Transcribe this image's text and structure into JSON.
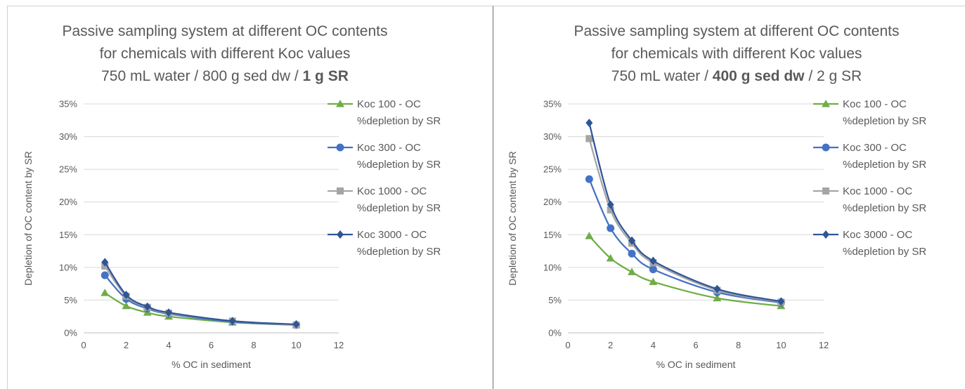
{
  "chart_data": [
    {
      "type": "line",
      "title_line1": "Passive sampling system at different OC contents",
      "title_line2": "for chemicals with different Koc values",
      "title_line3_parts": [
        {
          "text": "750 mL water / 800 g sed dw / ",
          "bold": false
        },
        {
          "text": "1 g SR",
          "bold": true
        }
      ],
      "xlabel": "% OC in sediment",
      "ylabel": "Depletion of OC content by SR",
      "xlim": [
        0,
        12
      ],
      "ylim": [
        0,
        0.35
      ],
      "x_ticks": [
        "0",
        "2",
        "4",
        "6",
        "8",
        "10",
        "12"
      ],
      "y_ticks": [
        "0%",
        "5%",
        "10%",
        "15%",
        "20%",
        "25%",
        "30%",
        "35%"
      ],
      "grid": true,
      "legend_position": "right",
      "x": [
        1,
        2,
        3,
        4,
        7,
        10
      ],
      "series": [
        {
          "name_line1": "Koc 100 - OC",
          "name_line2": "%depletion by SR",
          "color": "#70ad47",
          "marker": "triangle",
          "values": [
            0.061,
            0.041,
            0.031,
            0.025,
            0.016,
            0.012
          ]
        },
        {
          "name_line1": "Koc 300 - OC",
          "name_line2": "%depletion by SR",
          "color": "#4472c4",
          "marker": "circle",
          "values": [
            0.088,
            0.052,
            0.037,
            0.029,
            0.017,
            0.012
          ]
        },
        {
          "name_line1": "Koc 1000 - OC",
          "name_line2": "%depletion by SR",
          "color": "#a5a5a5",
          "marker": "square",
          "values": [
            0.102,
            0.056,
            0.039,
            0.03,
            0.018,
            0.012
          ]
        },
        {
          "name_line1": "Koc 3000 - OC",
          "name_line2": "%depletion by SR",
          "color": "#2f5597",
          "marker": "diamond",
          "values": [
            0.108,
            0.058,
            0.04,
            0.031,
            0.018,
            0.013
          ]
        }
      ]
    },
    {
      "type": "line",
      "title_line1": "Passive sampling system at different OC contents",
      "title_line2": "for chemicals with different Koc values",
      "title_line3_parts": [
        {
          "text": "750 mL water / ",
          "bold": false
        },
        {
          "text": "400 g sed dw",
          "bold": true
        },
        {
          "text": " / 2 g SR",
          "bold": false
        }
      ],
      "xlabel": "% OC in sediment",
      "ylabel": "Depletion of OC content by SR",
      "xlim": [
        0,
        12
      ],
      "ylim": [
        0,
        0.35
      ],
      "x_ticks": [
        "0",
        "2",
        "4",
        "6",
        "8",
        "10",
        "12"
      ],
      "y_ticks": [
        "0%",
        "5%",
        "10%",
        "15%",
        "20%",
        "25%",
        "30%",
        "35%"
      ],
      "grid": true,
      "legend_position": "right",
      "x": [
        1,
        2,
        3,
        4,
        7,
        10
      ],
      "series": [
        {
          "name_line1": "Koc 100 - OC",
          "name_line2": "%depletion by SR",
          "color": "#70ad47",
          "marker": "triangle",
          "values": [
            0.148,
            0.114,
            0.093,
            0.078,
            0.053,
            0.041
          ]
        },
        {
          "name_line1": "Koc 300 - OC",
          "name_line2": "%depletion by SR",
          "color": "#4472c4",
          "marker": "circle",
          "values": [
            0.235,
            0.16,
            0.121,
            0.097,
            0.062,
            0.046
          ]
        },
        {
          "name_line1": "Koc 1000 - OC",
          "name_line2": "%depletion by SR",
          "color": "#a5a5a5",
          "marker": "square",
          "values": [
            0.297,
            0.188,
            0.137,
            0.107,
            0.065,
            0.047
          ]
        },
        {
          "name_line1": "Koc 3000 - OC",
          "name_line2": "%depletion by SR",
          "color": "#2f5597",
          "marker": "diamond",
          "values": [
            0.321,
            0.196,
            0.141,
            0.11,
            0.067,
            0.048
          ]
        }
      ]
    }
  ]
}
